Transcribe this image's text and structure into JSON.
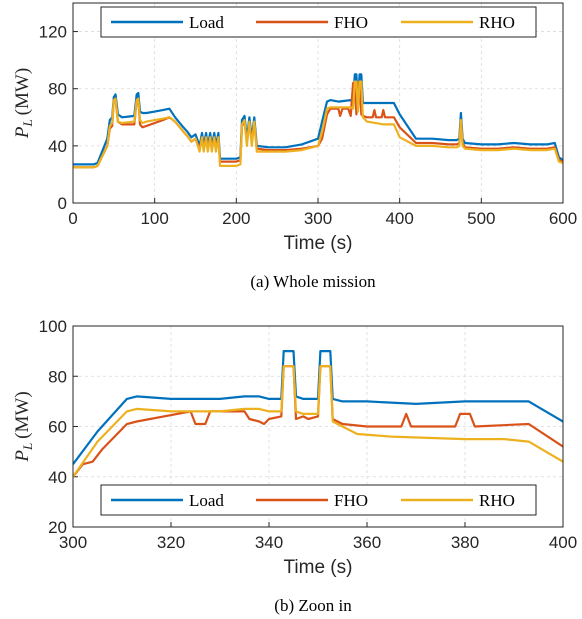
{
  "chart_data": [
    {
      "type": "line",
      "caption": "(a)  Whole mission",
      "xlabel": "Time (s)",
      "ylabel_main": "P",
      "ylabel_sub": "L",
      "ylabel_unit": "(MW)",
      "xlim": [
        0,
        600
      ],
      "ylim": [
        0,
        140
      ],
      "xticks": [
        "0",
        "100",
        "200",
        "300",
        "400",
        "500",
        "600"
      ],
      "yticks": [
        "0",
        "40",
        "80",
        "120"
      ],
      "grid": true,
      "legend_position": "top",
      "series": [
        {
          "name": "Load",
          "color": "#0072BD",
          "x": [
            0,
            25,
            30,
            42,
            45,
            48,
            50,
            52,
            55,
            60,
            75,
            78,
            80,
            82,
            85,
            90,
            100,
            110,
            118,
            125,
            135,
            140,
            145,
            150,
            155,
            158,
            160,
            163,
            165,
            168,
            170,
            173,
            175,
            178,
            180,
            200,
            205,
            207,
            210,
            213,
            216,
            219,
            222,
            225,
            240,
            260,
            280,
            300,
            305,
            311,
            315,
            325,
            340,
            343,
            345,
            347,
            349,
            351,
            353,
            355,
            360,
            380,
            393,
            400,
            420,
            440,
            460,
            470,
            473,
            475,
            477,
            480,
            500,
            520,
            540,
            560,
            580,
            590,
            595,
            600
          ],
          "y": [
            27,
            27,
            28,
            45,
            58,
            60,
            74,
            76,
            62,
            60,
            61,
            76,
            77,
            64,
            63,
            63,
            64,
            65,
            66,
            60,
            53,
            50,
            46,
            48,
            40,
            49,
            40,
            49,
            40,
            49,
            40,
            49,
            40,
            49,
            31,
            31,
            32,
            58,
            61,
            45,
            60,
            45,
            60,
            40,
            39,
            39,
            41,
            45,
            57,
            71,
            72,
            71,
            72,
            70,
            90,
            90,
            70,
            90,
            90,
            70,
            70,
            70,
            70,
            62,
            45,
            45,
            44,
            44,
            45,
            63,
            45,
            42,
            41,
            41,
            42,
            41,
            41,
            42,
            32,
            30
          ]
        },
        {
          "name": "FHO",
          "color": "#D95319",
          "x": [
            0,
            25,
            30,
            42,
            45,
            48,
            50,
            52,
            55,
            60,
            75,
            78,
            80,
            82,
            85,
            90,
            100,
            110,
            118,
            125,
            135,
            140,
            145,
            150,
            155,
            158,
            160,
            163,
            165,
            168,
            170,
            173,
            175,
            178,
            180,
            200,
            205,
            207,
            210,
            213,
            216,
            219,
            222,
            225,
            240,
            260,
            280,
            300,
            305,
            311,
            315,
            325,
            327,
            330,
            337,
            340,
            343,
            345,
            347,
            349,
            351,
            353,
            355,
            360,
            367,
            369,
            371,
            378,
            380,
            382,
            393,
            400,
            420,
            440,
            460,
            470,
            473,
            475,
            477,
            480,
            500,
            520,
            540,
            560,
            580,
            590,
            595,
            600
          ],
          "y": [
            25,
            25,
            26,
            40,
            52,
            54,
            72,
            73,
            57,
            55,
            55,
            72,
            73,
            55,
            53,
            54,
            56,
            58,
            60,
            57,
            50,
            47,
            43,
            45,
            38,
            46,
            38,
            46,
            38,
            46,
            38,
            46,
            38,
            46,
            29,
            29,
            30,
            54,
            57,
            43,
            56,
            43,
            56,
            38,
            37,
            37,
            38,
            40,
            45,
            62,
            66,
            66,
            61,
            66,
            66,
            61,
            84,
            84,
            62,
            84,
            84,
            62,
            61,
            60,
            60,
            65,
            60,
            60,
            65,
            60,
            60,
            53,
            42,
            42,
            41,
            41,
            42,
            58,
            42,
            39,
            38,
            38,
            39,
            38,
            38,
            39,
            30,
            29
          ]
        },
        {
          "name": "RHO",
          "color": "#EDB120",
          "x": [
            0,
            25,
            30,
            42,
            45,
            48,
            50,
            52,
            55,
            60,
            75,
            78,
            80,
            82,
            85,
            90,
            100,
            110,
            118,
            125,
            135,
            140,
            145,
            150,
            155,
            158,
            160,
            163,
            165,
            168,
            170,
            173,
            175,
            178,
            180,
            200,
            205,
            207,
            210,
            213,
            216,
            219,
            222,
            225,
            240,
            260,
            280,
            300,
            305,
            311,
            315,
            325,
            340,
            343,
            345,
            347,
            349,
            351,
            353,
            355,
            360,
            380,
            393,
            400,
            420,
            440,
            460,
            470,
            473,
            475,
            477,
            480,
            500,
            520,
            540,
            560,
            580,
            590,
            595,
            600
          ],
          "y": [
            25,
            25,
            26,
            40,
            54,
            56,
            72,
            73,
            57,
            56,
            57,
            72,
            73,
            58,
            56,
            57,
            58,
            59,
            60,
            57,
            50,
            47,
            43,
            45,
            36,
            46,
            36,
            46,
            36,
            46,
            36,
            46,
            36,
            46,
            26,
            26,
            27,
            55,
            58,
            40,
            57,
            40,
            57,
            36,
            36,
            36,
            37,
            40,
            50,
            66,
            67,
            67,
            67,
            66,
            85,
            85,
            64,
            85,
            85,
            60,
            57,
            55,
            55,
            46,
            40,
            40,
            39,
            39,
            40,
            58,
            40,
            38,
            37,
            37,
            38,
            37,
            37,
            38,
            29,
            28
          ]
        }
      ]
    },
    {
      "type": "line",
      "caption": "(b)  Zoon in",
      "xlabel": "Time (s)",
      "ylabel_main": "P",
      "ylabel_sub": "L",
      "ylabel_unit": "(MW)",
      "xlim": [
        300,
        400
      ],
      "ylim": [
        20,
        100
      ],
      "xticks": [
        "300",
        "320",
        "340",
        "360",
        "380",
        "400"
      ],
      "yticks": [
        "20",
        "40",
        "60",
        "80",
        "100"
      ],
      "grid": true,
      "legend_position": "bottom",
      "series": [
        {
          "name": "Load",
          "color": "#0072BD",
          "x": [
            300,
            305,
            311,
            313,
            320,
            330,
            335,
            338,
            340,
            342.5,
            343,
            345,
            345.5,
            347,
            348,
            350,
            350.5,
            352.5,
            353,
            355,
            360,
            370,
            380,
            393,
            400
          ],
          "y": [
            45,
            58,
            71,
            72,
            71,
            71,
            72,
            72,
            71,
            71,
            90,
            90,
            72,
            71,
            71,
            71,
            90,
            90,
            71,
            70,
            70,
            69,
            70,
            70,
            62
          ]
        },
        {
          "name": "FHO",
          "color": "#D95319",
          "x": [
            300,
            302,
            304,
            306,
            311,
            313,
            324,
            325,
            327,
            328,
            335,
            336,
            338,
            339,
            340,
            342.5,
            343,
            345,
            345.5,
            347,
            348,
            350,
            350.5,
            352.5,
            353,
            355,
            360,
            367,
            368,
            369,
            370,
            378,
            379,
            381,
            382,
            393,
            400
          ],
          "y": [
            40,
            45,
            46,
            51,
            61,
            62,
            66,
            61,
            61,
            66,
            66,
            63,
            62,
            61,
            63,
            64,
            84,
            84,
            63,
            64,
            63,
            64,
            84,
            84,
            63,
            61,
            60,
            60,
            65,
            60,
            60,
            60,
            65,
            65,
            60,
            61,
            52
          ]
        },
        {
          "name": "RHO",
          "color": "#EDB120",
          "x": [
            300,
            305,
            311,
            313,
            320,
            330,
            335,
            338,
            340,
            342.5,
            343,
            345,
            345.5,
            347,
            348,
            350,
            350.5,
            352.5,
            353,
            355,
            358,
            365,
            380,
            388,
            393,
            400
          ],
          "y": [
            40,
            54,
            66,
            67,
            66,
            66,
            67,
            67,
            66,
            66,
            84,
            84,
            66,
            65,
            65,
            65,
            84,
            84,
            62,
            60,
            57,
            56,
            55,
            55,
            54,
            46
          ]
        }
      ]
    }
  ]
}
